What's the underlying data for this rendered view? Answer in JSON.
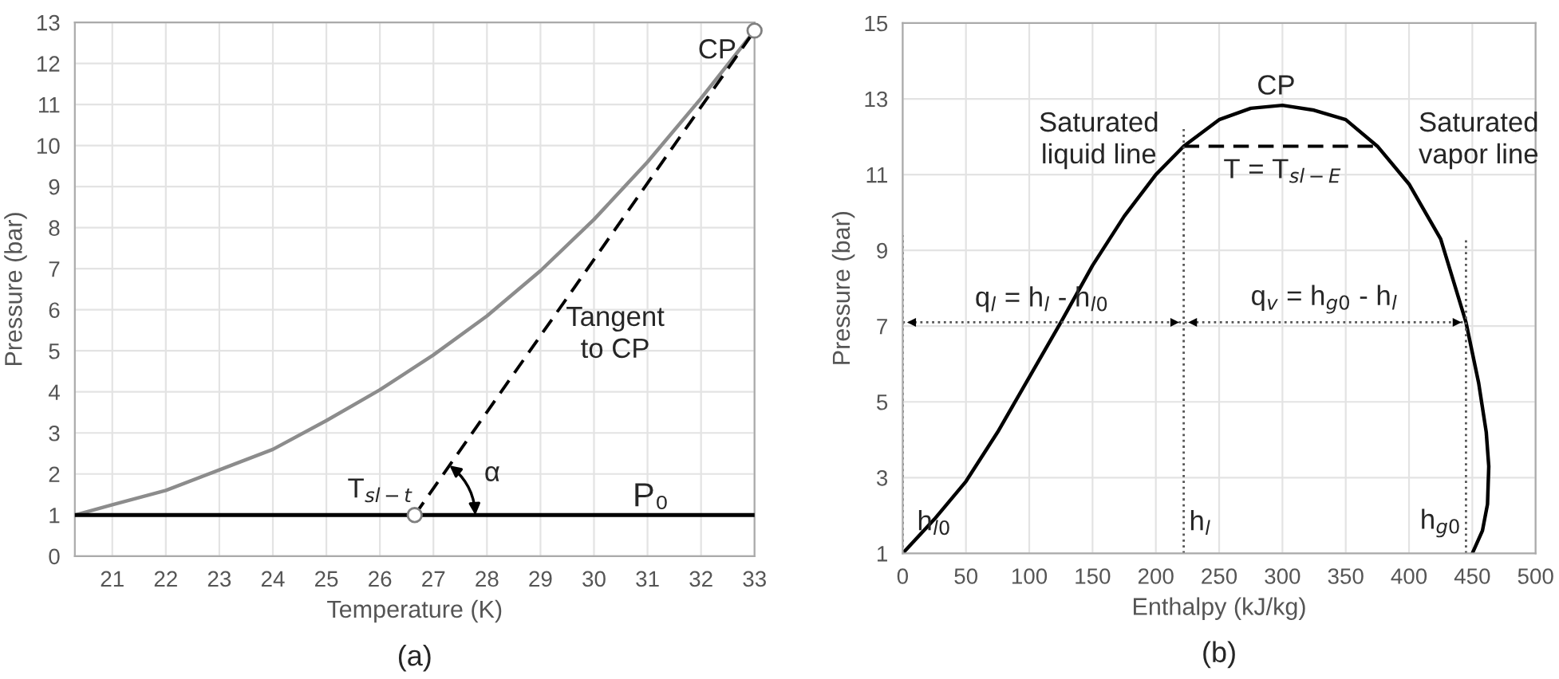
{
  "chart_data": [
    {
      "type": "line",
      "title": "(a)",
      "xlabel": "Temperature (K)",
      "ylabel": "Pressure (bar)",
      "xlim": [
        20.3,
        33
      ],
      "xticks": [
        21,
        22,
        23,
        24,
        25,
        26,
        27,
        28,
        29,
        30,
        31,
        32,
        33
      ],
      "ylim": [
        0,
        13
      ],
      "yticks": [
        0,
        1,
        2,
        3,
        4,
        5,
        6,
        7,
        8,
        9,
        10,
        11,
        12,
        13
      ],
      "grid": true,
      "series": [
        {
          "color": "#8c8c8c",
          "x": [
            20.3,
            21,
            22,
            23,
            24,
            25,
            26,
            27,
            28,
            29,
            30,
            31,
            32,
            33
          ],
          "values": [
            1,
            1.25,
            1.6,
            2.1,
            2.6,
            3.3,
            4.05,
            4.9,
            5.85,
            6.95,
            8.2,
            9.6,
            11.15,
            12.8
          ]
        },
        {
          "color": "#000000",
          "line_style": "dashed",
          "x": [
            26.65,
            33
          ],
          "values": [
            1,
            12.8
          ]
        },
        {
          "type": "scatter",
          "marker": "circle",
          "color": "#808080",
          "x": [
            26.65,
            33
          ],
          "values": [
            1,
            12.8
          ]
        }
      ],
      "ref_lines": [
        {
          "axis": "y",
          "value": 1,
          "label": "P₀",
          "color": "#000000",
          "line_style": "solid"
        }
      ],
      "annotations": [
        "CP",
        "Tangent\nto CP",
        "T$_{sl−t}$",
        "α"
      ]
    },
    {
      "type": "line",
      "title": "(b)",
      "xlabel": "Enthalpy (kJ/kg)",
      "ylabel": "Pressure (bar)",
      "xlim": [
        0,
        500
      ],
      "xticks": [
        0,
        50,
        100,
        150,
        200,
        250,
        300,
        350,
        400,
        450,
        500
      ],
      "ylim": [
        1,
        15
      ],
      "yticks": [
        1,
        3,
        5,
        7,
        9,
        11,
        13,
        15
      ],
      "grid": true,
      "series": [
        {
          "color": "#000000",
          "x": [
            0,
            25,
            50,
            75,
            100,
            125,
            150,
            175,
            200,
            222,
            250,
            275,
            300,
            325,
            350,
            375,
            400,
            425,
            445,
            455,
            461,
            463,
            462,
            458,
            450
          ],
          "values": [
            1,
            1.9,
            2.9,
            4.2,
            5.65,
            7.1,
            8.6,
            9.9,
            11.0,
            11.75,
            12.45,
            12.75,
            12.83,
            12.7,
            12.45,
            11.75,
            10.75,
            9.3,
            7.1,
            5.5,
            4.2,
            3.3,
            2.3,
            1.6,
            1
          ]
        },
        {
          "color": "#000000",
          "line_style": "dashed",
          "x": [
            222,
            375
          ],
          "values": [
            11.75,
            11.75
          ]
        },
        {
          "color": "#555555",
          "line_style": "dotted",
          "x": [
            0,
            0
          ],
          "values": [
            1,
            9.4
          ]
        },
        {
          "color": "#555555",
          "line_style": "dotted",
          "x": [
            222,
            222
          ],
          "values": [
            1,
            12.2
          ]
        },
        {
          "color": "#555555",
          "line_style": "dotted",
          "x": [
            445,
            445
          ],
          "values": [
            1,
            9.3
          ]
        },
        {
          "color": "#555555",
          "line_style": "dotted",
          "x": [
            0,
            222,
            445
          ],
          "values": [
            7.1,
            7.1,
            7.1
          ]
        }
      ],
      "annotations": [
        "CP",
        "Saturated\nliquid line",
        "Saturated\nvapor line",
        "T = T$_{sl−E}$",
        "q$_{l}$ = h$_{l}$ - h$_{l0}$",
        "q$_{v}$ = h$_{g0}$ - h$_{l}$",
        "h$_{l0}$",
        "h$_{l}$",
        "h$_{g0}$"
      ]
    }
  ]
}
